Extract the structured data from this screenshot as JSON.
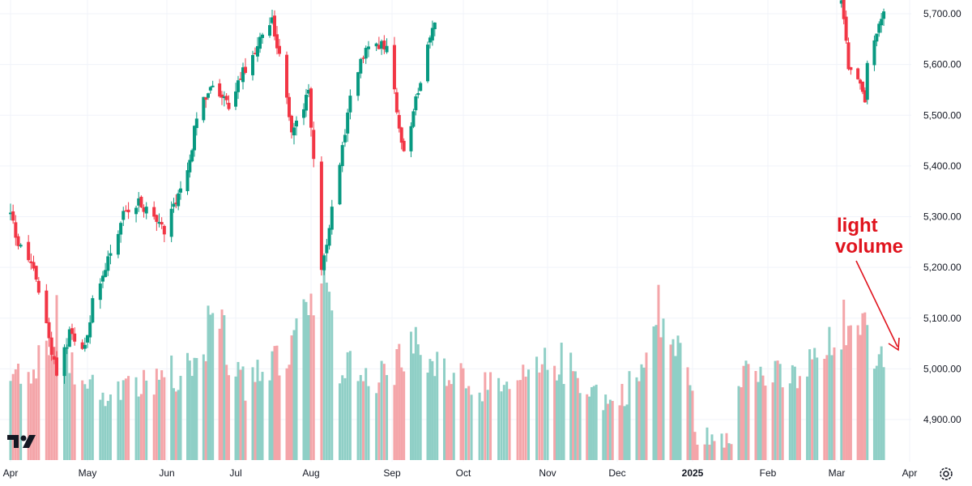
{
  "chart_data": {
    "type": "candlestick",
    "title": "",
    "xlabel": "",
    "ylabel": "",
    "ylim": [
      4840,
      5725
    ],
    "y_ticks": [
      "5,700.00",
      "5,600.00",
      "5,500.00",
      "5,400.00",
      "5,300.00",
      "5,200.00",
      "5,100.00",
      "5,000.00",
      "4,900.00"
    ],
    "x_ticks": [
      {
        "label": "Apr",
        "bold": false
      },
      {
        "label": "May",
        "bold": false
      },
      {
        "label": "Jun",
        "bold": false
      },
      {
        "label": "Jul",
        "bold": false
      },
      {
        "label": "Aug",
        "bold": false
      },
      {
        "label": "Sep",
        "bold": false
      },
      {
        "label": "Oct",
        "bold": false
      },
      {
        "label": "Nov",
        "bold": false
      },
      {
        "label": "Dec",
        "bold": false
      },
      {
        "label": "2025",
        "bold": true
      },
      {
        "label": "Feb",
        "bold": false
      },
      {
        "label": "Mar",
        "bold": false
      },
      {
        "label": "Apr",
        "bold": false
      }
    ],
    "annotation": {
      "line1": "light",
      "line2": "volume"
    },
    "colors": {
      "up": "#089981",
      "down": "#f23645",
      "volume_up": "#8fcfc6",
      "volume_down": "#f4a5a9",
      "grid": "#f0f3fa",
      "annotation": "#e0141e"
    },
    "price_anchors": [
      {
        "d": "2024-04-01",
        "p": 5305
      },
      {
        "d": "2024-04-04",
        "p": 5245
      },
      {
        "d": "2024-04-10",
        "p": 5200
      },
      {
        "d": "2024-04-16",
        "p": 5065
      },
      {
        "d": "2024-04-19",
        "p": 4985
      },
      {
        "d": "2024-04-24",
        "p": 5070
      },
      {
        "d": "2024-04-30",
        "p": 5040
      },
      {
        "d": "2024-05-03",
        "p": 5130
      },
      {
        "d": "2024-05-15",
        "p": 5305
      },
      {
        "d": "2024-05-21",
        "p": 5330
      },
      {
        "d": "2024-05-31",
        "p": 5275
      },
      {
        "d": "2024-06-07",
        "p": 5345
      },
      {
        "d": "2024-06-12",
        "p": 5440
      },
      {
        "d": "2024-06-14",
        "p": 5500
      },
      {
        "d": "2024-06-20",
        "p": 5560
      },
      {
        "d": "2024-06-28",
        "p": 5520
      },
      {
        "d": "2024-07-03",
        "p": 5575
      },
      {
        "d": "2024-07-10",
        "p": 5640
      },
      {
        "d": "2024-07-16",
        "p": 5690
      },
      {
        "d": "2024-07-19",
        "p": 5610
      },
      {
        "d": "2024-07-24",
        "p": 5470
      },
      {
        "d": "2024-07-31",
        "p": 5540
      },
      {
        "d": "2024-08-02",
        "p": 5410
      },
      {
        "d": "2024-08-05",
        "p": 5200
      },
      {
        "d": "2024-08-08",
        "p": 5280
      },
      {
        "d": "2024-08-16",
        "p": 5530
      },
      {
        "d": "2024-08-22",
        "p": 5640
      },
      {
        "d": "2024-08-30",
        "p": 5640
      },
      {
        "d": "2024-09-06",
        "p": 5420
      },
      {
        "d": "2024-09-12",
        "p": 5550
      },
      {
        "d": "2024-09-16",
        "p": 5630
      },
      {
        "d": "2024-09-19",
        "p": 5690
      }
    ],
    "price_anchors_2": [
      {
        "d": "2025-03-03",
        "p": 5720
      },
      {
        "d": "2025-03-06",
        "p": 5600
      },
      {
        "d": "2025-03-10",
        "p": 5570
      },
      {
        "d": "2025-03-13",
        "p": 5530
      },
      {
        "d": "2025-03-14",
        "p": 5610
      },
      {
        "d": "2025-03-19",
        "p": 5670
      },
      {
        "d": "2025-03-21",
        "p": 5700
      }
    ],
    "volume_profile": [
      {
        "d": "2024-04-01",
        "v": 0.4
      },
      {
        "d": "2024-04-12",
        "v": 0.55
      },
      {
        "d": "2024-04-19",
        "v": 0.75
      },
      {
        "d": "2024-04-26",
        "v": 0.45
      },
      {
        "d": "2024-05-10",
        "v": 0.34
      },
      {
        "d": "2024-05-24",
        "v": 0.42
      },
      {
        "d": "2024-06-14",
        "v": 0.52
      },
      {
        "d": "2024-06-21",
        "v": 0.78
      },
      {
        "d": "2024-07-05",
        "v": 0.42
      },
      {
        "d": "2024-07-25",
        "v": 0.6
      },
      {
        "d": "2024-08-05",
        "v": 1.0
      },
      {
        "d": "2024-08-12",
        "v": 0.52
      },
      {
        "d": "2024-08-30",
        "v": 0.45
      },
      {
        "d": "2024-09-06",
        "v": 0.62
      },
      {
        "d": "2024-09-20",
        "v": 0.55
      },
      {
        "d": "2024-10-15",
        "v": 0.36
      },
      {
        "d": "2024-11-05",
        "v": 0.55
      },
      {
        "d": "2024-11-29",
        "v": 0.3
      },
      {
        "d": "2024-12-12",
        "v": 0.5
      },
      {
        "d": "2024-12-18",
        "v": 0.8
      },
      {
        "d": "2024-12-31",
        "v": 0.46
      },
      {
        "d": "2025-01-20",
        "v": 0.5
      },
      {
        "d": "2025-02-10",
        "v": 0.43
      },
      {
        "d": "2025-02-28",
        "v": 0.62
      },
      {
        "d": "2025-03-10",
        "v": 0.92
      },
      {
        "d": "2025-03-17",
        "v": 0.62
      },
      {
        "d": "2025-03-21",
        "v": 0.48
      }
    ],
    "volume_gap_start": "2025-01-02",
    "volume_gap_end": "2025-01-17"
  }
}
